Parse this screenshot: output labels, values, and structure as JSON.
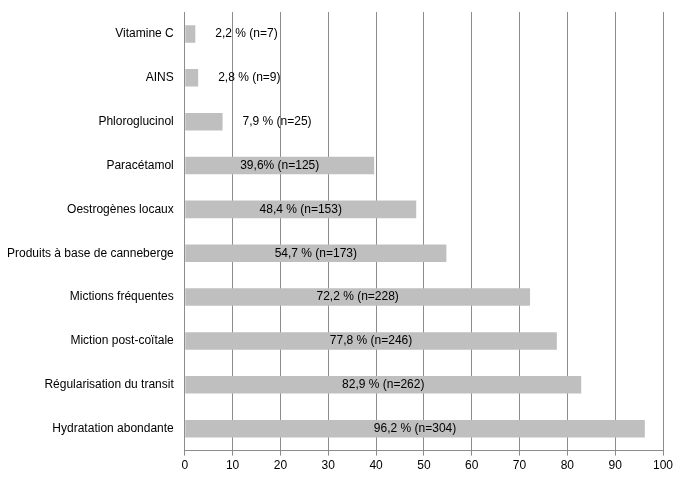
{
  "chart_data": {
    "type": "bar",
    "orientation": "horizontal",
    "categories": [
      "Vitamine C",
      "AINS",
      "Phloroglucinol",
      "Paracétamol",
      "Oestrogènes locaux",
      "Produits à base de canneberge",
      "Mictions fréquentes",
      "Miction post-coïtale",
      "Régularisation du transit",
      "Hydratation abondante"
    ],
    "values": [
      2.2,
      2.8,
      7.9,
      39.6,
      48.4,
      54.7,
      72.2,
      77.8,
      82.9,
      96.2
    ],
    "value_labels": [
      "2,2 % (n=7)",
      "2,8 % (n=9)",
      "7,9 % (n=25)",
      "39,6% (n=125)",
      "48,4 % (n=153)",
      "54,7 % (n=173)",
      "72,2 % (n=228)",
      "77,8 % (n=246)",
      "82,9 % (n=262)",
      "96,2 % (n=304)"
    ],
    "color": "#bfbfbf",
    "data_labels": true,
    "xlim": [
      0,
      100
    ],
    "xticks": [
      0,
      10,
      20,
      30,
      40,
      50,
      60,
      70,
      80,
      90,
      100
    ],
    "grid": true
  }
}
